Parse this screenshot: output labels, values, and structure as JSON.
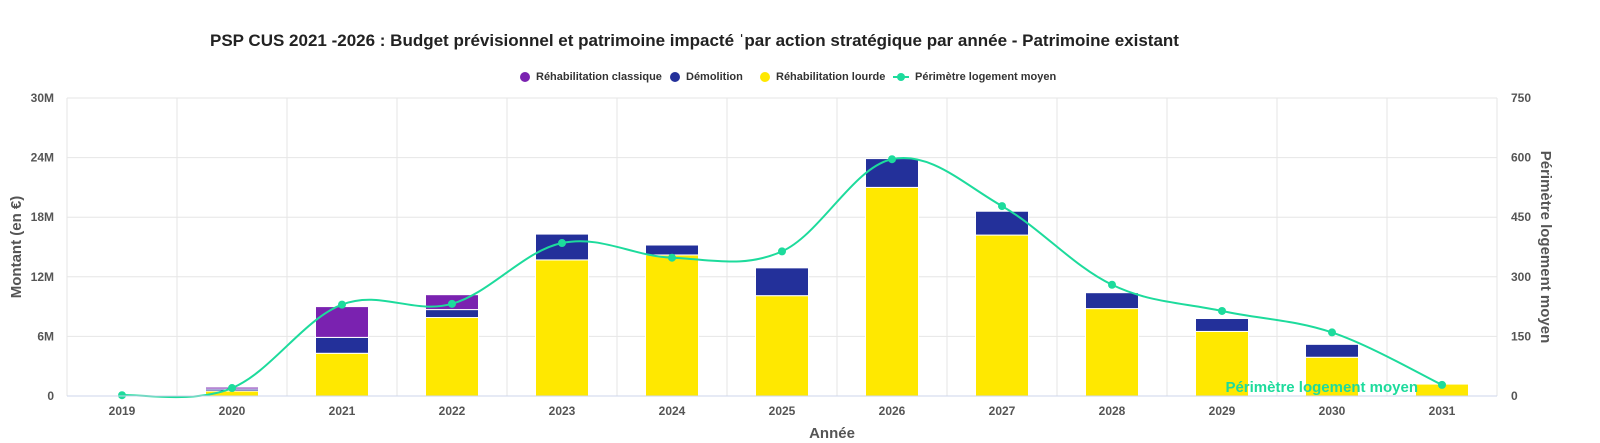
{
  "chart_data": {
    "type": "bar",
    "title": "PSP CUS 2021 -2026 : Budget prévisionnel et patrimoine impacté ˈpar action stratégique par année - Patrimoine existant",
    "xlabel": "Année",
    "ylabel": "Montant (en €)",
    "y2label": "Périmètre logement moyen",
    "categories": [
      "2019",
      "2020",
      "2021",
      "2022",
      "2023",
      "2024",
      "2025",
      "2026",
      "2027",
      "2028",
      "2029",
      "2030",
      "2031"
    ],
    "ylim": [
      0,
      30000000
    ],
    "y_ticks": [
      0,
      6000000,
      12000000,
      18000000,
      24000000,
      30000000
    ],
    "y_tick_labels": [
      "0",
      "6M",
      "12M",
      "18M",
      "24M",
      "30M"
    ],
    "y2lim": [
      0,
      750
    ],
    "y2_ticks": [
      0,
      150,
      300,
      450,
      600,
      750
    ],
    "y2_tick_labels": [
      "0",
      "150",
      "300",
      "450",
      "600",
      "750"
    ],
    "grid": true,
    "legend_position": "top-center",
    "series": [
      {
        "name": "Réhabilitation lourde",
        "type": "bar",
        "stacked": true,
        "axis": "left",
        "color": "#FFE800",
        "values": [
          0,
          500000,
          4300000,
          7900000,
          13700000,
          14200000,
          10100000,
          21000000,
          16200000,
          8800000,
          6500000,
          3900000,
          1200000
        ]
      },
      {
        "name": "Démolition",
        "type": "bar",
        "stacked": true,
        "axis": "left",
        "color": "#23309A",
        "values": [
          0,
          200000,
          1600000,
          800000,
          2600000,
          1000000,
          2800000,
          2900000,
          2400000,
          1600000,
          1300000,
          1300000,
          0
        ]
      },
      {
        "name": "Réhabilitation classique",
        "type": "bar",
        "stacked": true,
        "axis": "left",
        "color": "#7A22B0",
        "values": [
          0,
          200000,
          3100000,
          1500000,
          0,
          0,
          0,
          0,
          0,
          0,
          0,
          0,
          0
        ]
      },
      {
        "name": "Périmètre logement moyen",
        "type": "line",
        "axis": "right",
        "color": "#1DDB9C",
        "values": [
          2,
          20,
          230,
          232,
          385,
          348,
          364,
          596,
          478,
          280,
          214,
          160,
          28
        ]
      }
    ],
    "annotations": [
      {
        "text": "Périmètre logement moyen",
        "color": "#1DDB9C"
      }
    ]
  },
  "legend": [
    {
      "label": "Réhabilitation classique",
      "color": "#7A22B0",
      "marker": "dot"
    },
    {
      "label": "Démolition",
      "color": "#23309A",
      "marker": "dot"
    },
    {
      "label": "Réhabilitation lourde",
      "color": "#FFE800",
      "marker": "dot"
    },
    {
      "label": "Périmètre logement moyen",
      "color": "#1DDB9C",
      "marker": "line"
    }
  ]
}
